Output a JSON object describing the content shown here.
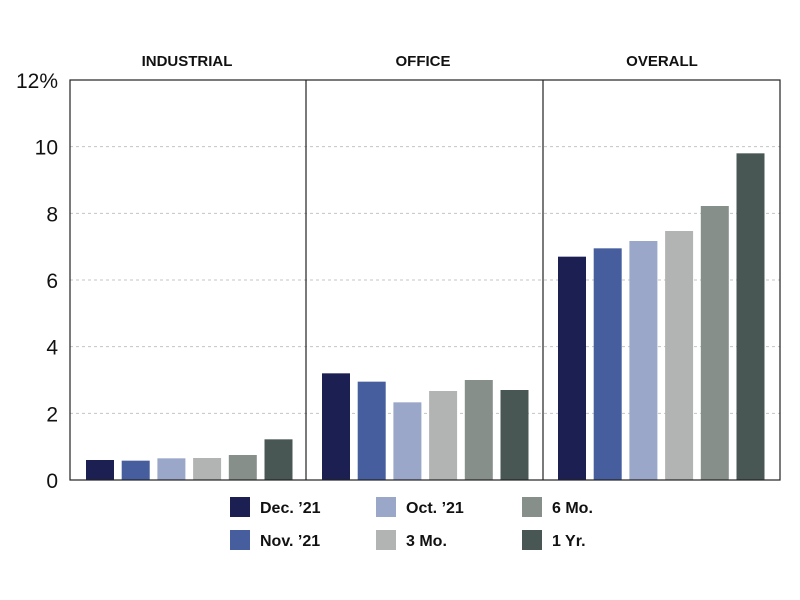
{
  "chart_data": {
    "type": "bar",
    "panels": [
      "INDUSTRIAL",
      "OFFICE",
      "OVERALL"
    ],
    "series": [
      {
        "name": "Dec. ’21",
        "color": "#1c1f52",
        "values": [
          0.6,
          3.2,
          6.7
        ]
      },
      {
        "name": "Nov. ’21",
        "color": "#465d9e",
        "values": [
          0.58,
          2.95,
          6.95
        ]
      },
      {
        "name": "Oct. ’21",
        "color": "#9ba7c9",
        "values": [
          0.65,
          2.33,
          7.17
        ]
      },
      {
        "name": "3 Mo.",
        "color": "#b2b4b3",
        "values": [
          0.66,
          2.67,
          7.47
        ]
      },
      {
        "name": "6 Mo.",
        "color": "#878f8b",
        "values": [
          0.75,
          3.0,
          8.22
        ]
      },
      {
        "name": "1 Yr.",
        "color": "#495754",
        "values": [
          1.22,
          2.7,
          9.8
        ]
      }
    ],
    "y_ticks": [
      "0",
      "2",
      "4",
      "6",
      "8",
      "10",
      "12%"
    ],
    "ylim": [
      0,
      12
    ],
    "grid": true,
    "legend_position": "bottom"
  }
}
